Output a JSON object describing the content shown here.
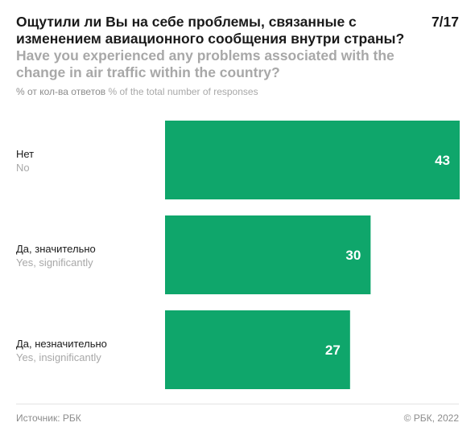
{
  "header": {
    "title_ru": "Ощутили ли Вы на себе проблемы, связанные с изменением авиационного сообщения внутри страны?",
    "title_en": "Have you experienced any problems associated with the change in air traffic within the country?",
    "page_indicator": "7/17",
    "subtitle_ru": "% от кол-ва ответов",
    "subtitle_en": "% of the total number of responses"
  },
  "footer": {
    "source": "Источник: РБК",
    "copyright": "© РБК, 2022"
  },
  "colors": {
    "bar": "#0fa66b",
    "label_primary": "#1a1a1a",
    "label_secondary": "#a8a8a8",
    "value_text": "#ffffff"
  },
  "chart_data": {
    "type": "bar",
    "orientation": "horizontal",
    "categories": [
      "Нет",
      "Да, значительно",
      "Да, незначительно"
    ],
    "categories_en": [
      "No",
      "Yes, significantly",
      "Yes, insignificantly"
    ],
    "values": [
      43,
      30,
      27
    ],
    "xlim": [
      0,
      43
    ],
    "grid": false,
    "legend": "none",
    "data_labels": true
  }
}
